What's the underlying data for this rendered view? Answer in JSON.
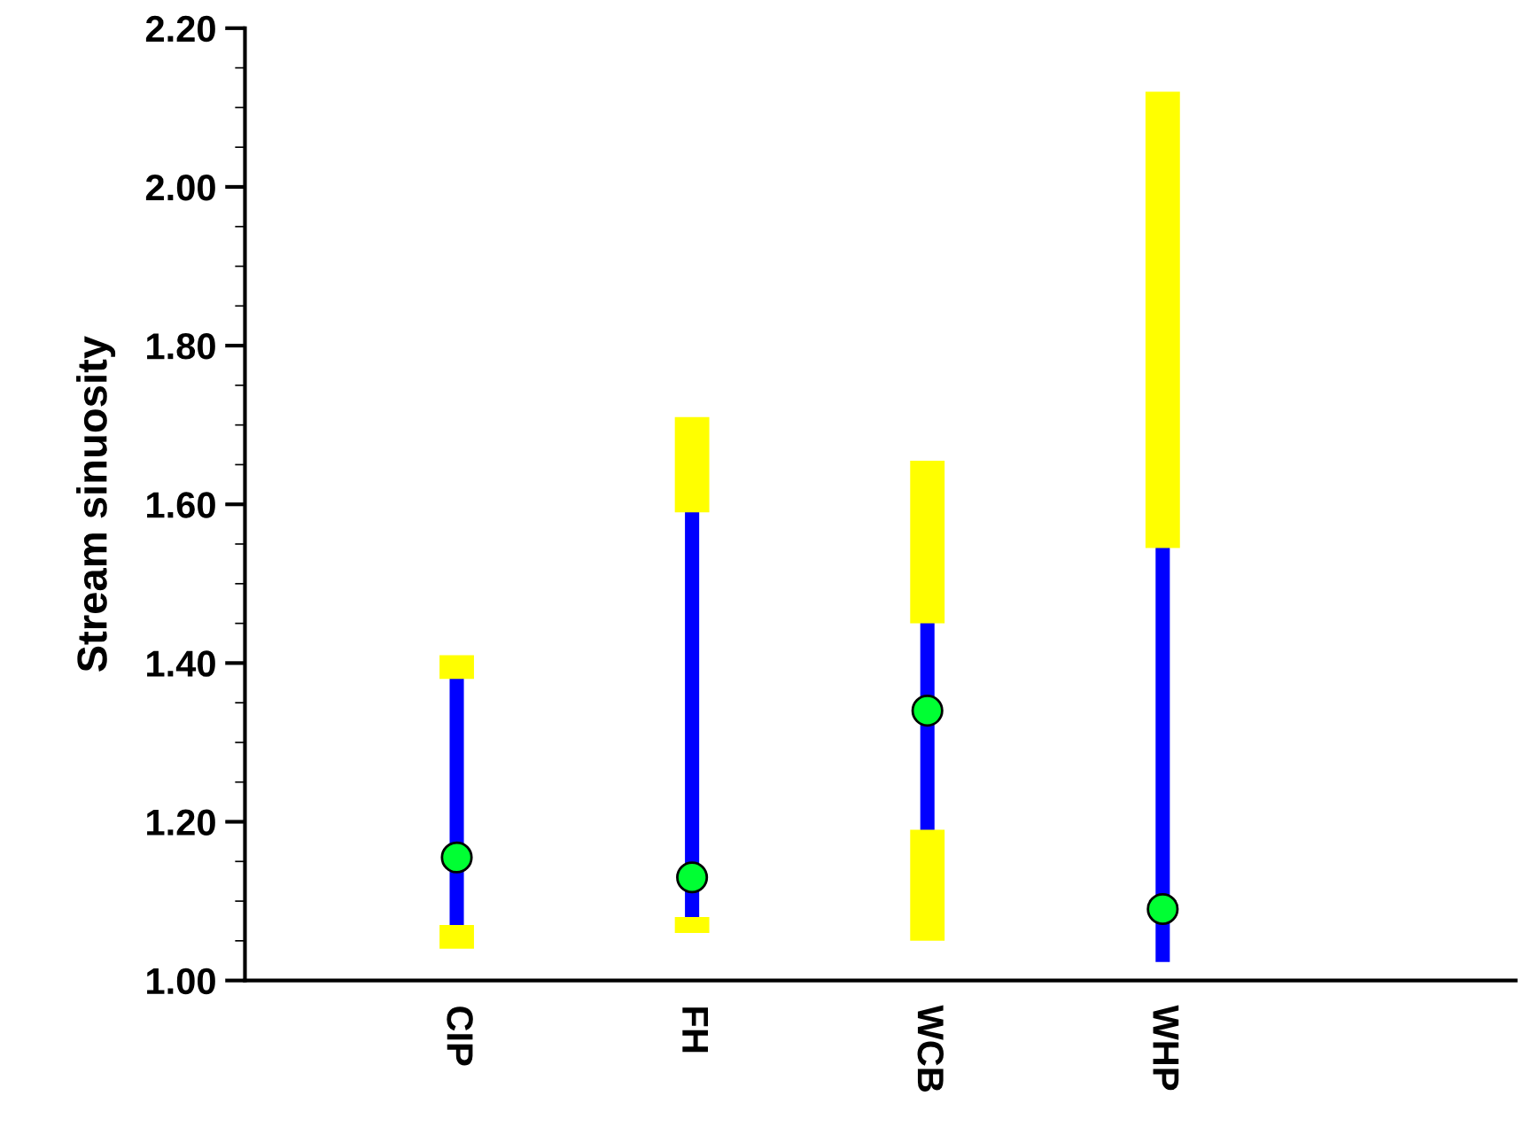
{
  "chart_data": {
    "type": "box",
    "ylabel": "Stream sinuosity",
    "categories": [
      "CIP",
      "FH",
      "WCB",
      "WHP"
    ],
    "boxes": [
      {
        "low": 1.04,
        "q1": 1.07,
        "median": 1.155,
        "q3": 1.38,
        "high": 1.41
      },
      {
        "low": 1.06,
        "q1": 1.08,
        "median": 1.13,
        "q3": 1.59,
        "high": 1.71
      },
      {
        "low": 1.05,
        "q1": 1.19,
        "median": 1.34,
        "q3": 1.45,
        "high": 1.655
      },
      {
        "low": 1.025,
        "q1": 1.025,
        "median": 1.09,
        "q3": 1.545,
        "high": 2.12
      }
    ],
    "color": "#0000ff",
    "ylim": [
      1.0,
      2.2
    ],
    "yticks": [
      {
        "value": 1.0,
        "label": "1.00"
      },
      {
        "value": 1.2,
        "label": "1.20"
      },
      {
        "value": 1.4,
        "label": "1.40"
      },
      {
        "value": 1.6,
        "label": "1.60"
      },
      {
        "value": 1.8,
        "label": "1.80"
      },
      {
        "value": 2.0,
        "label": "2.00"
      },
      {
        "value": 2.2,
        "label": "2.20"
      }
    ],
    "grid": false,
    "legend": false
  }
}
